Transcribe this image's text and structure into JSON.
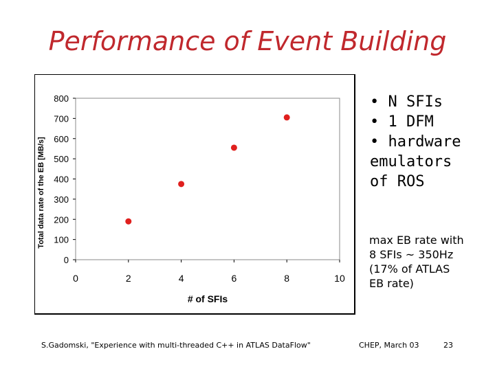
{
  "slide": {
    "title": "Performance of Event Building",
    "bullets": [
      "• N SFIs",
      "• 1 DFM",
      "• hardware",
      "emulators",
      "of ROS"
    ],
    "note_lines": [
      "max EB rate with",
      "8 SFIs ~ 350Hz",
      "(17% of ATLAS",
      "EB rate)"
    ],
    "footer_left": "S.Gadomski, \"Experience with multi-threaded C++ in ATLAS DataFlow\"",
    "footer_mid": "CHEP, March 03",
    "footer_right": "23"
  },
  "chart_data": {
    "type": "scatter",
    "xlabel": "# of SFIs",
    "ylabel": "Total data rate of the EB [MB/s]",
    "xlim": [
      0,
      10
    ],
    "ylim": [
      0,
      800
    ],
    "x_ticks": [
      0,
      2,
      4,
      6,
      8,
      10
    ],
    "y_ticks": [
      0,
      100,
      200,
      300,
      400,
      500,
      600,
      700,
      800
    ],
    "grid": false,
    "points_color": "#e0201e",
    "series": [
      {
        "x": [
          2,
          4,
          6,
          8
        ],
        "y": [
          190,
          375,
          555,
          705
        ]
      }
    ]
  }
}
